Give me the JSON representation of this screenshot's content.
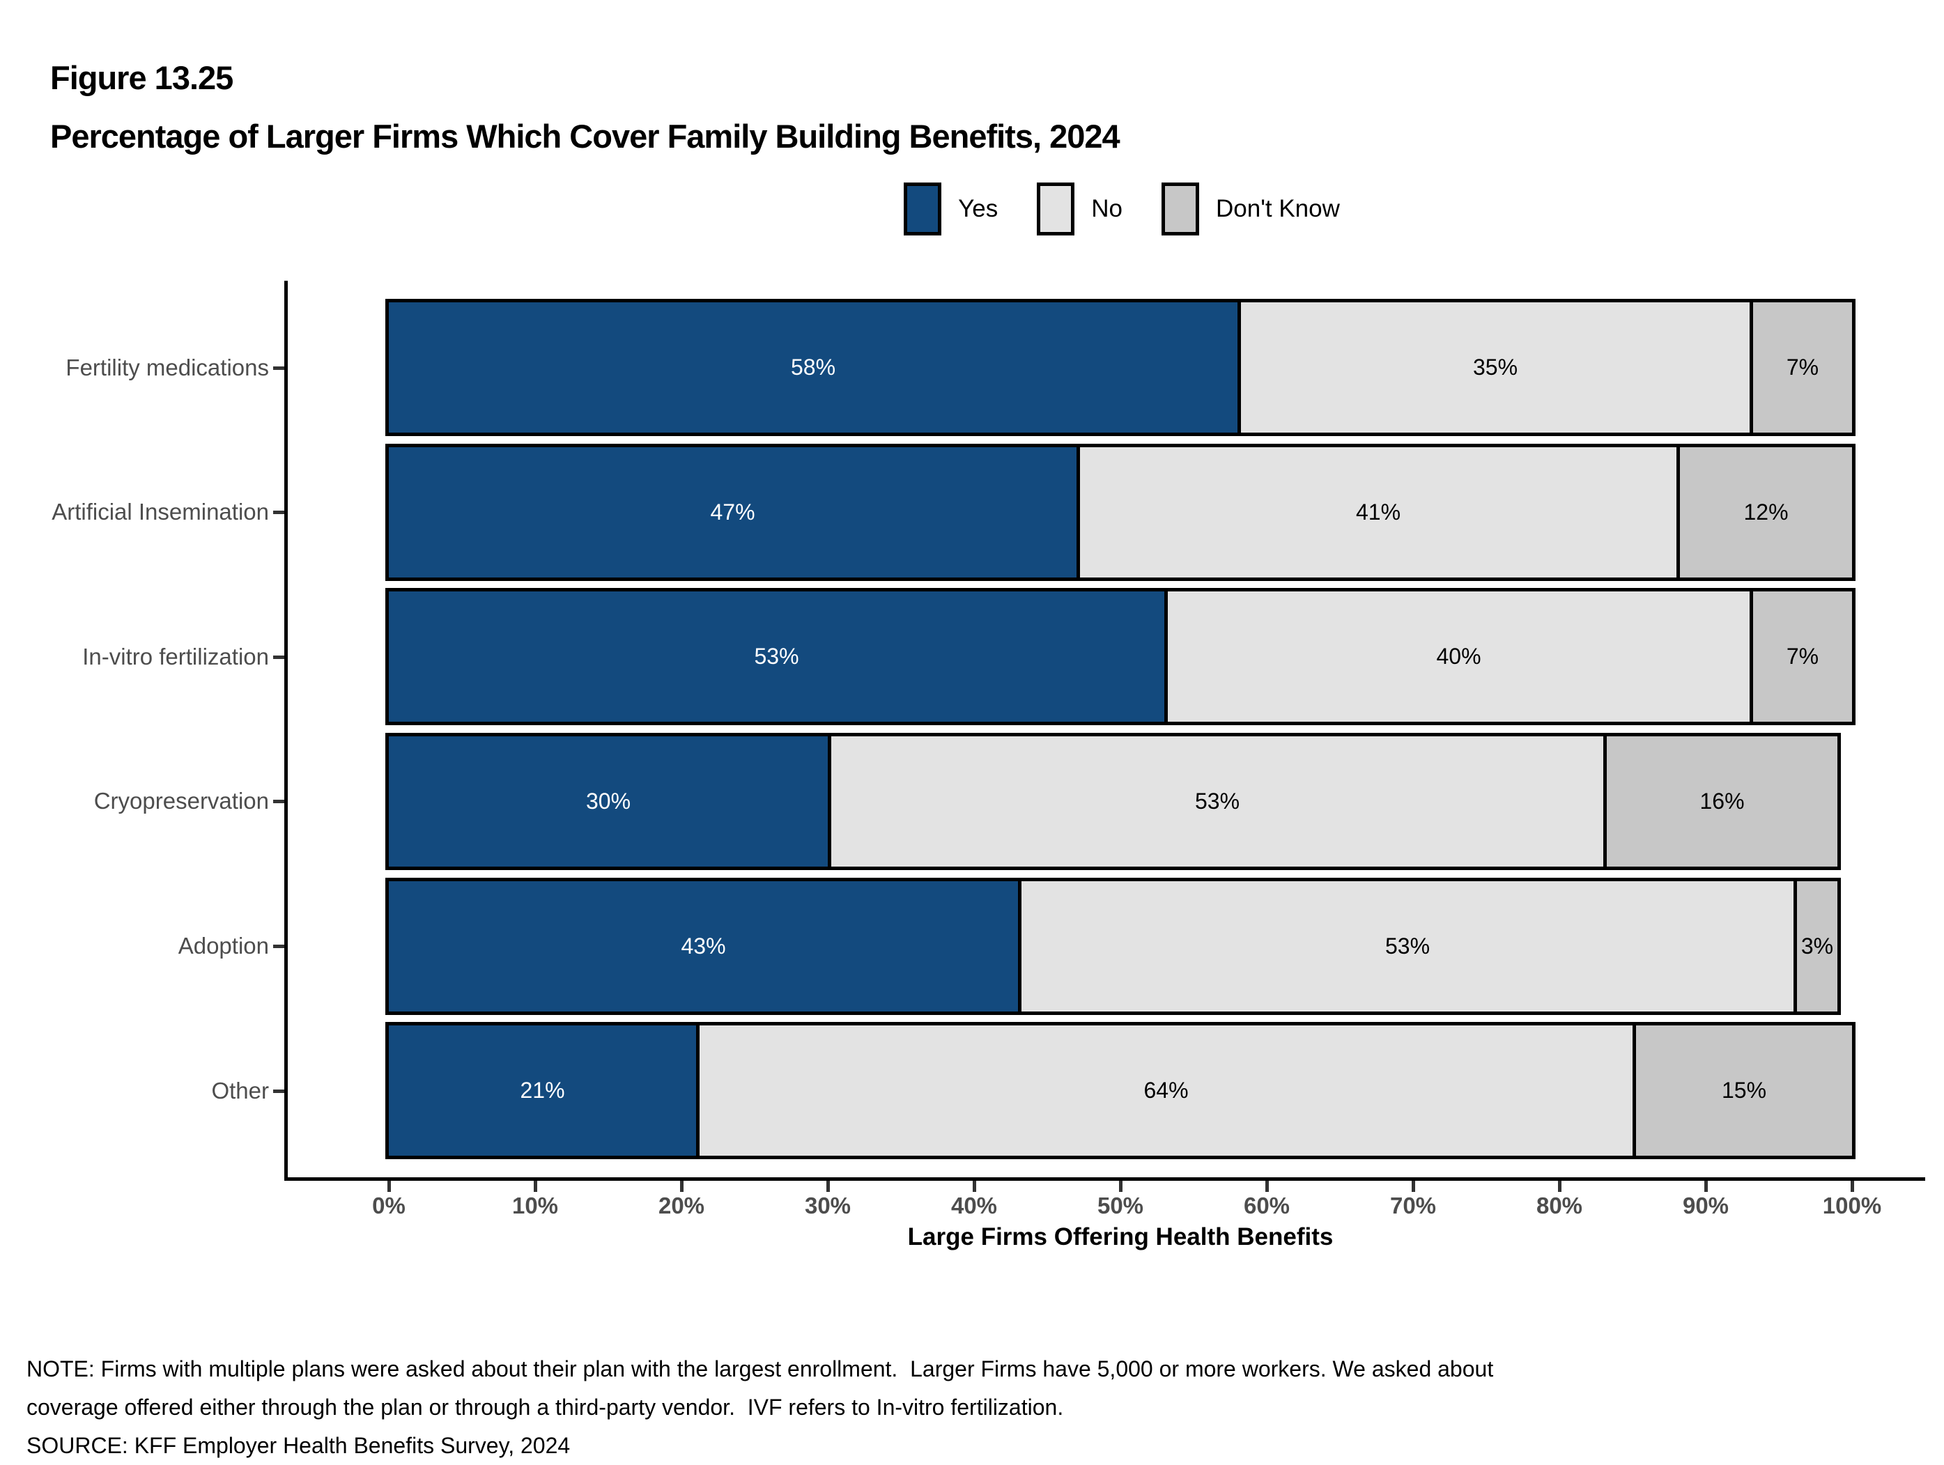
{
  "figure": {
    "number": "Figure 13.25",
    "title": "Percentage of Larger Firms Which Cover Family Building Benefits, 2024"
  },
  "chart_data": {
    "type": "bar",
    "orientation": "horizontal",
    "stacked": true,
    "title": "Percentage of Larger Firms Which Cover Family Building Benefits, 2024",
    "categories": [
      "Fertility medications",
      "Artificial Insemination",
      "In-vitro fertilization",
      "Cryopreservation",
      "Adoption",
      "Other"
    ],
    "series": [
      {
        "name": "Yes",
        "color": "#134A7E",
        "label_color": "#FFFFFF",
        "values": [
          58,
          47,
          53,
          30,
          43,
          21
        ]
      },
      {
        "name": "No",
        "color": "#E3E3E3",
        "label_color": "#000000",
        "values": [
          35,
          41,
          40,
          53,
          53,
          64
        ]
      },
      {
        "name": "Don't Know",
        "color": "#C7C7C7",
        "label_color": "#000000",
        "values": [
          7,
          12,
          7,
          16,
          3,
          15
        ]
      }
    ],
    "value_suffix": "%",
    "xlabel": "Large Firms Offering Health Benefits",
    "x_ticks": [
      "0%",
      "10%",
      "20%",
      "30%",
      "40%",
      "50%",
      "60%",
      "70%",
      "80%",
      "90%",
      "100%"
    ],
    "xlim": [
      0,
      100
    ],
    "legend_position": "top",
    "grid": false,
    "bar_outline_color": "#000000",
    "axis_text_color": "#4d4d4d"
  },
  "notes": {
    "line1": "NOTE: Firms with multiple plans were asked about their plan with the largest enrollment.  Larger Firms have 5,000 or more workers. We asked about",
    "line2": "coverage offered either through the plan or through a third-party vendor.  IVF refers to In-vitro fertilization.",
    "source": "SOURCE: KFF Employer Health Benefits Survey, 2024"
  }
}
